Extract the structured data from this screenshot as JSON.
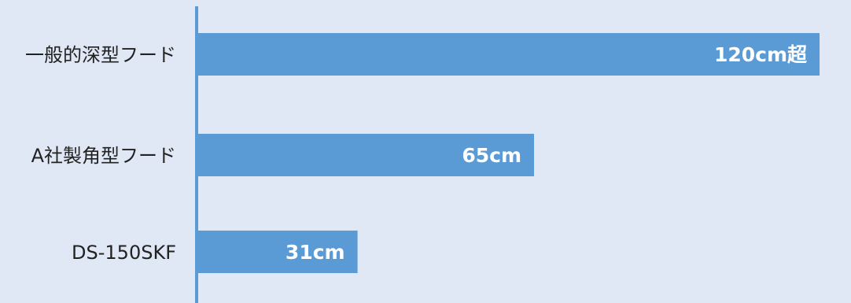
{
  "chart_data": {
    "type": "bar",
    "orientation": "horizontal",
    "categories": [
      "一般的深型フード",
      "A社製角型フード",
      "DS-150SKF"
    ],
    "values": [
      120,
      65,
      31
    ],
    "value_labels": [
      "120cm超",
      "65cm",
      "31cm"
    ],
    "unit": "cm",
    "title": "",
    "xlabel": "",
    "ylabel": "",
    "grid": false,
    "legend": "none"
  },
  "colors": {
    "background": "#dfe8f4",
    "bar": "#5b9bd5",
    "axis": "#5b9bd5",
    "category_text": "#222222",
    "value_text": "#ffffff"
  }
}
